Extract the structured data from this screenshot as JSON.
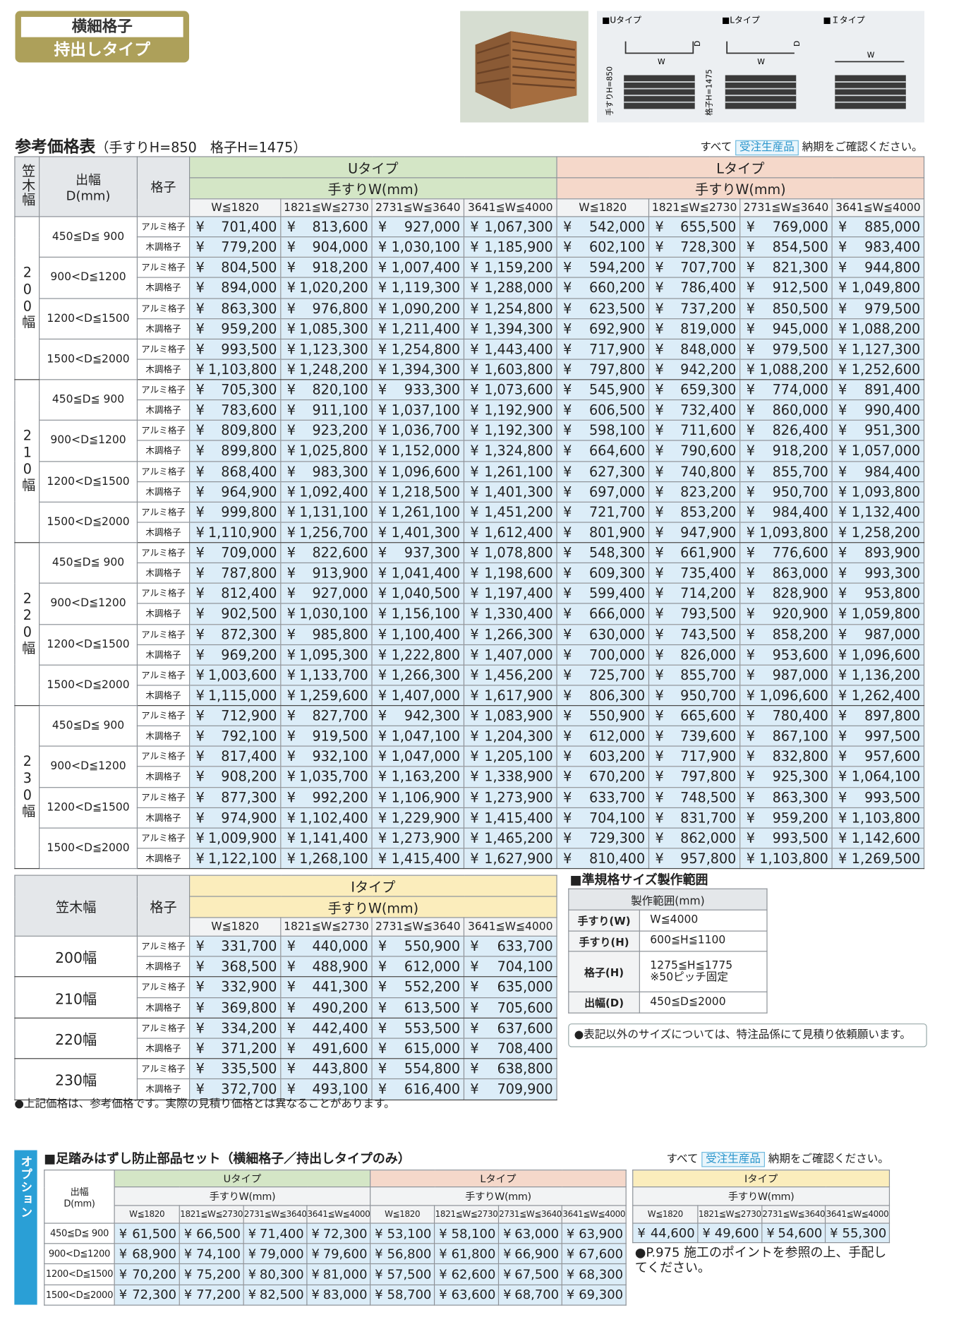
{
  "header": {
    "badge": [
      "横細格子",
      "持出しタイプ"
    ]
  },
  "diagram": {
    "types": [
      "■Uタイプ",
      "■Lタイプ",
      "■Ｉタイプ"
    ],
    "w": "W",
    "d": "D",
    "handrail_h": "手すりH=850",
    "lattice_h": "格子H=1475"
  },
  "price_table": {
    "title": "参考価格表",
    "subtitle": "（手すりH=850　格子H=1475）",
    "note": {
      "prefix": "すべて",
      "badge": "受注生産品",
      "suffix": "納期をご確認ください。"
    },
    "kasagi_header": "笠木幅",
    "depth_header": [
      "出幅",
      "D(mm)"
    ],
    "lattice_header": "格子",
    "types": [
      "Uタイプ",
      "Lタイプ"
    ],
    "width_label": "手すりW(mm)",
    "widths": [
      "W≦1820",
      "1821≦W≦2730",
      "2731≦W≦3640",
      "3641≦W≦4000"
    ],
    "currency": "¥",
    "lattices": [
      "アルミ格子",
      "木調格子"
    ],
    "depths": [
      "450≦D≦ 900",
      "900<D≦1200",
      "1200<D≦1500",
      "1500<D≦2000"
    ],
    "groups": [
      {
        "label": "200幅",
        "rows": [
          [
            "701,400",
            "813,600",
            "927,000",
            "1,067,300",
            "542,000",
            "655,500",
            "769,000",
            "885,000"
          ],
          [
            "779,200",
            "904,000",
            "1,030,100",
            "1,185,900",
            "602,100",
            "728,300",
            "854,500",
            "983,400"
          ],
          [
            "804,500",
            "918,200",
            "1,007,400",
            "1,159,200",
            "594,200",
            "707,700",
            "821,300",
            "944,800"
          ],
          [
            "894,000",
            "1,020,200",
            "1,119,300",
            "1,288,000",
            "660,200",
            "786,400",
            "912,500",
            "1,049,800"
          ],
          [
            "863,300",
            "976,800",
            "1,090,200",
            "1,254,800",
            "623,500",
            "737,200",
            "850,500",
            "979,500"
          ],
          [
            "959,200",
            "1,085,300",
            "1,211,400",
            "1,394,300",
            "692,900",
            "819,000",
            "945,000",
            "1,088,200"
          ],
          [
            "993,500",
            "1,123,300",
            "1,254,800",
            "1,443,400",
            "717,900",
            "848,000",
            "979,500",
            "1,127,300"
          ],
          [
            "1,103,800",
            "1,248,200",
            "1,394,300",
            "1,603,800",
            "797,800",
            "942,200",
            "1,088,200",
            "1,252,600"
          ]
        ]
      },
      {
        "label": "210幅",
        "rows": [
          [
            "705,300",
            "820,100",
            "933,300",
            "1,073,600",
            "545,900",
            "659,300",
            "774,000",
            "891,400"
          ],
          [
            "783,600",
            "911,100",
            "1,037,100",
            "1,192,900",
            "606,500",
            "732,400",
            "860,000",
            "990,400"
          ],
          [
            "809,800",
            "923,200",
            "1,036,700",
            "1,192,300",
            "598,100",
            "711,600",
            "826,400",
            "951,300"
          ],
          [
            "899,800",
            "1,025,800",
            "1,152,000",
            "1,324,800",
            "664,600",
            "790,600",
            "918,200",
            "1,057,000"
          ],
          [
            "868,400",
            "983,300",
            "1,096,600",
            "1,261,100",
            "627,300",
            "740,800",
            "855,700",
            "984,400"
          ],
          [
            "964,900",
            "1,092,400",
            "1,218,500",
            "1,401,300",
            "697,000",
            "823,200",
            "950,700",
            "1,093,800"
          ],
          [
            "999,800",
            "1,131,100",
            "1,261,100",
            "1,451,200",
            "721,700",
            "853,200",
            "984,400",
            "1,132,400"
          ],
          [
            "1,110,900",
            "1,256,700",
            "1,401,300",
            "1,612,400",
            "801,900",
            "947,900",
            "1,093,800",
            "1,258,200"
          ]
        ]
      },
      {
        "label": "220幅",
        "rows": [
          [
            "709,000",
            "822,600",
            "937,300",
            "1,078,800",
            "548,300",
            "661,900",
            "776,600",
            "893,900"
          ],
          [
            "787,800",
            "913,900",
            "1,041,400",
            "1,198,600",
            "609,300",
            "735,400",
            "863,000",
            "993,300"
          ],
          [
            "812,400",
            "927,000",
            "1,040,500",
            "1,197,400",
            "599,400",
            "714,200",
            "828,900",
            "953,800"
          ],
          [
            "902,500",
            "1,030,100",
            "1,156,100",
            "1,330,400",
            "666,000",
            "793,500",
            "920,900",
            "1,059,800"
          ],
          [
            "872,300",
            "985,800",
            "1,100,400",
            "1,266,300",
            "630,000",
            "743,500",
            "858,200",
            "987,000"
          ],
          [
            "969,200",
            "1,095,300",
            "1,222,800",
            "1,407,000",
            "700,000",
            "826,000",
            "953,600",
            "1,096,600"
          ],
          [
            "1,003,600",
            "1,133,700",
            "1,266,300",
            "1,456,200",
            "725,700",
            "855,700",
            "987,000",
            "1,136,200"
          ],
          [
            "1,115,000",
            "1,259,600",
            "1,407,000",
            "1,617,900",
            "806,300",
            "950,700",
            "1,096,600",
            "1,262,400"
          ]
        ]
      },
      {
        "label": "230幅",
        "rows": [
          [
            "712,900",
            "827,700",
            "942,300",
            "1,083,900",
            "550,900",
            "665,600",
            "780,400",
            "897,800"
          ],
          [
            "792,100",
            "919,500",
            "1,047,100",
            "1,204,300",
            "612,000",
            "739,600",
            "867,100",
            "997,500"
          ],
          [
            "817,400",
            "932,100",
            "1,047,000",
            "1,205,100",
            "603,200",
            "717,900",
            "832,800",
            "957,600"
          ],
          [
            "908,200",
            "1,035,700",
            "1,163,200",
            "1,338,900",
            "670,200",
            "797,800",
            "925,300",
            "1,064,100"
          ],
          [
            "877,300",
            "992,200",
            "1,106,900",
            "1,273,900",
            "633,700",
            "748,500",
            "863,300",
            "993,500"
          ],
          [
            "974,900",
            "1,102,400",
            "1,229,900",
            "1,415,400",
            "704,100",
            "831,700",
            "959,200",
            "1,103,800"
          ],
          [
            "1,009,900",
            "1,141,400",
            "1,273,900",
            "1,465,200",
            "729,300",
            "862,000",
            "993,500",
            "1,142,600"
          ],
          [
            "1,122,100",
            "1,268,100",
            "1,415,400",
            "1,627,900",
            "810,400",
            "957,800",
            "1,103,800",
            "1,269,500"
          ]
        ]
      }
    ]
  },
  "i_table": {
    "kasagi_header": "笠木幅",
    "lattice_header": "格子",
    "type": "Iタイプ",
    "groups": [
      {
        "label": "200幅",
        "rows": [
          [
            "331,700",
            "440,000",
            "550,900",
            "633,700"
          ],
          [
            "368,500",
            "488,900",
            "612,000",
            "704,100"
          ]
        ]
      },
      {
        "label": "210幅",
        "rows": [
          [
            "332,900",
            "441,300",
            "552,200",
            "635,000"
          ],
          [
            "369,800",
            "490,200",
            "613,500",
            "705,600"
          ]
        ]
      },
      {
        "label": "220幅",
        "rows": [
          [
            "334,200",
            "442,400",
            "553,500",
            "637,600"
          ],
          [
            "371,200",
            "491,600",
            "615,000",
            "708,400"
          ]
        ]
      },
      {
        "label": "230幅",
        "rows": [
          [
            "335,500",
            "443,800",
            "554,800",
            "638,800"
          ],
          [
            "372,700",
            "493,100",
            "616,400",
            "709,900"
          ]
        ]
      }
    ],
    "note": "●上記価格は、参考価格です。実際の見積り価格とは異なることがあります。"
  },
  "spec": {
    "title": "■準規格サイズ製作範囲",
    "header": "製作範囲(mm)",
    "rows": [
      {
        "label": "手すり(W)",
        "value": [
          "W≦4000"
        ]
      },
      {
        "label": "手すり(H)",
        "value": [
          "600≦H≦1100"
        ]
      },
      {
        "label": "格子(H)",
        "value": [
          "1275≦H≦1775",
          "※50ピッチ固定"
        ]
      },
      {
        "label": "出幅(D)",
        "value": [
          "450≦D≦2000"
        ]
      }
    ],
    "note": "●表記以外のサイズについては、特注品係にて見積り依頼願います。"
  },
  "option": {
    "side_label": "オプション",
    "title": "■足踏みはずし防止部品セット（横細格子／持出しタイプのみ）",
    "types": [
      "Uタイプ",
      "Lタイプ",
      "Iタイプ"
    ],
    "rows": [
      [
        "61,500",
        "66,500",
        "71,400",
        "72,300",
        "53,100",
        "58,100",
        "63,000",
        "63,900"
      ],
      [
        "68,900",
        "74,100",
        "79,000",
        "79,600",
        "56,800",
        "61,800",
        "66,900",
        "67,600"
      ],
      [
        "70,200",
        "75,200",
        "80,300",
        "81,000",
        "57,500",
        "62,600",
        "67,500",
        "68,300"
      ],
      [
        "72,300",
        "77,200",
        "82,500",
        "83,000",
        "58,700",
        "63,600",
        "68,700",
        "69,300"
      ]
    ],
    "i_row": [
      "44,600",
      "49,600",
      "54,600",
      "55,300"
    ],
    "note": "●P.975 施工のポイントを参照の上、手配してください。"
  }
}
